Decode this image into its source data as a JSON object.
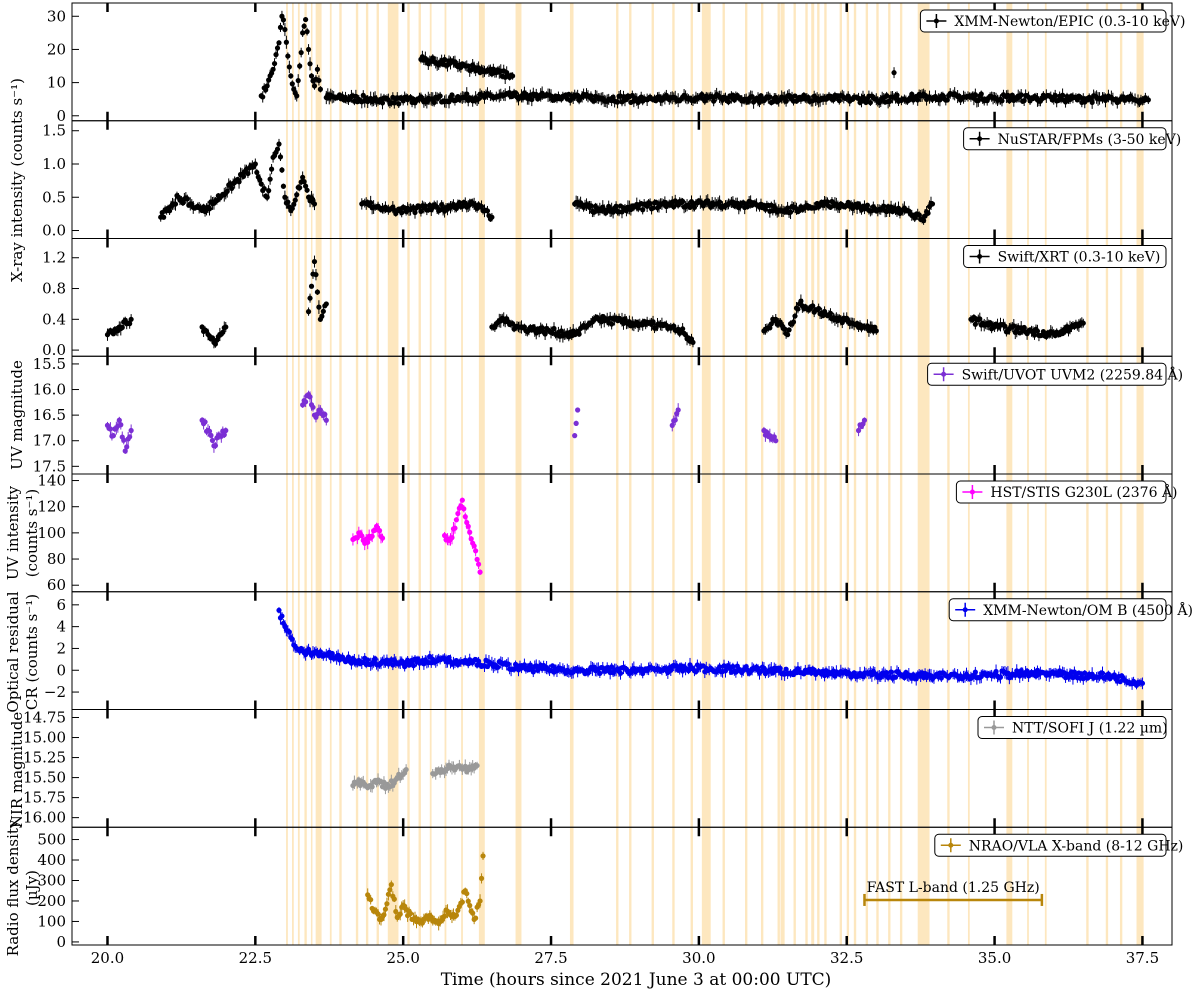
{
  "chart_data": {
    "type": "scatter",
    "xlabel": "Time (hours since 2021 June 3 at 00:00 UTC)",
    "xlim": [
      19.4,
      38.0
    ],
    "xticks": [
      "20.0",
      "22.5",
      "25.0",
      "27.5",
      "30.0",
      "32.5",
      "35.0",
      "37.5"
    ],
    "xtick_values": [
      20.0,
      22.5,
      25.0,
      27.5,
      30.0,
      32.5,
      35.0,
      37.5
    ],
    "shaded_intervals": [
      [
        23.02,
        23.05
      ],
      [
        23.12,
        23.15
      ],
      [
        23.22,
        23.25
      ],
      [
        23.33,
        23.37
      ],
      [
        23.44,
        23.46
      ],
      [
        23.52,
        23.62
      ],
      [
        23.76,
        23.79
      ],
      [
        23.92,
        23.96
      ],
      [
        24.2,
        24.24
      ],
      [
        24.37,
        24.41
      ],
      [
        24.55,
        24.59
      ],
      [
        24.74,
        24.92
      ],
      [
        25.07,
        25.11
      ],
      [
        25.26,
        25.3
      ],
      [
        25.45,
        25.48
      ],
      [
        25.7,
        25.73
      ],
      [
        25.98,
        26.01
      ],
      [
        26.28,
        26.38
      ],
      [
        26.9,
        27.0
      ],
      [
        27.82,
        27.88
      ],
      [
        28.6,
        28.64
      ],
      [
        28.82,
        28.86
      ],
      [
        29.2,
        29.24
      ],
      [
        29.55,
        29.59
      ],
      [
        29.86,
        29.9
      ],
      [
        30.05,
        30.2
      ],
      [
        30.4,
        30.44
      ],
      [
        30.78,
        30.82
      ],
      [
        31.05,
        31.09
      ],
      [
        31.33,
        31.37
      ],
      [
        31.38,
        31.45
      ],
      [
        31.6,
        31.64
      ],
      [
        31.8,
        31.84
      ],
      [
        31.9,
        31.95
      ],
      [
        32.0,
        32.04
      ],
      [
        32.12,
        32.16
      ],
      [
        32.38,
        32.42
      ],
      [
        32.5,
        32.54
      ],
      [
        32.62,
        32.66
      ],
      [
        32.82,
        32.86
      ],
      [
        33.0,
        33.04
      ],
      [
        33.2,
        33.24
      ],
      [
        33.4,
        33.44
      ],
      [
        33.7,
        33.9
      ],
      [
        34.2,
        34.24
      ],
      [
        34.55,
        34.58
      ],
      [
        35.2,
        35.3
      ],
      [
        35.55,
        35.58
      ],
      [
        35.85,
        35.88
      ],
      [
        36.55,
        36.59
      ],
      [
        36.88,
        36.92
      ],
      [
        37.12,
        37.16
      ],
      [
        37.4,
        37.52
      ]
    ],
    "panels": [
      {
        "id": "xmm-epic",
        "legend": "XMM-Newton/EPIC (0.3-10 keV)",
        "color": "#000000",
        "ylim": [
          -1.5,
          34
        ],
        "yticks": [
          "0",
          "10",
          "20",
          "30"
        ],
        "ytick_values": [
          0,
          10,
          20,
          30
        ],
        "series": [
          {
            "segment": "flare",
            "x": [
              22.6,
              22.7,
              22.8,
              22.9,
              22.95,
              23.0,
              23.05,
              23.1,
              23.15,
              23.2,
              23.25,
              23.3,
              23.35,
              23.4,
              23.45,
              23.5,
              23.55,
              23.6
            ],
            "y": [
              6,
              9,
              14,
              22,
              30,
              26,
              18,
              12,
              8,
              6,
              15,
              25,
              29,
              20,
              12,
              9,
              14,
              8
            ]
          },
          {
            "segment": "quiescent",
            "x": [
              23.7,
              24.5,
              25.0,
              25.5,
              26.0,
              27.0,
              28.0,
              29.0,
              30.0,
              31.0,
              32.0,
              33.0,
              34.0,
              35.0,
              36.0,
              37.0,
              37.6
            ],
            "y": [
              5.5,
              5.0,
              4.5,
              5.0,
              5.5,
              6.0,
              5.5,
              5.0,
              5.5,
              5.0,
              5.2,
              5.0,
              5.8,
              5.5,
              5.2,
              5.0,
              4.8
            ]
          },
          {
            "segment": "outliers",
            "x": [
              25.3,
              26.05,
              26.85,
              33.3
            ],
            "y": [
              17,
              15,
              12,
              13
            ]
          }
        ]
      },
      {
        "id": "nustar",
        "legend": "NuSTAR/FPMs (3-50 keV)",
        "color": "#000000",
        "ylim": [
          -0.12,
          1.65
        ],
        "yticks": [
          "0.0",
          "0.5",
          "1.0",
          "1.5"
        ],
        "ytick_values": [
          0.0,
          0.5,
          1.0,
          1.5
        ],
        "series": [
          {
            "segment": "orbits",
            "x": [
              20.9,
              21.0,
              21.1,
              21.2,
              21.4,
              21.5,
              21.6,
              21.7,
              22.5,
              22.6,
              22.7,
              22.8,
              22.9,
              23.0,
              23.1,
              23.3,
              23.4,
              23.5
            ],
            "y": [
              0.2,
              0.3,
              0.4,
              0.5,
              0.4,
              0.35,
              0.3,
              0.35,
              1.0,
              0.7,
              0.5,
              1.1,
              1.3,
              0.5,
              0.3,
              0.8,
              0.5,
              0.4
            ]
          },
          {
            "segment": "orbits-later",
            "x": [
              24.3,
              24.7,
              24.9,
              25.8,
              26.2,
              26.5,
              27.9,
              28.3,
              28.9,
              29.5,
              30.5,
              31.0,
              31.4,
              32.3,
              32.8,
              33.5,
              33.8,
              33.95
            ],
            "y": [
              0.4,
              0.35,
              0.3,
              0.35,
              0.4,
              0.2,
              0.4,
              0.3,
              0.35,
              0.4,
              0.4,
              0.38,
              0.3,
              0.4,
              0.35,
              0.3,
              0.15,
              0.4
            ]
          }
        ]
      },
      {
        "id": "swift-xrt",
        "legend": "Swift/XRT (0.3-10 keV)",
        "color": "#000000",
        "ylim": [
          -0.08,
          1.45
        ],
        "yticks": [
          "0.0",
          "0.4",
          "0.8",
          "1.2"
        ],
        "ytick_values": [
          0.0,
          0.4,
          0.8,
          1.2
        ],
        "series": [
          {
            "segment": "snapshots",
            "x": [
              20.0,
              20.2,
              20.4,
              21.6,
              21.8,
              22.0,
              23.4,
              23.5,
              23.6,
              23.7,
              26.5,
              26.7,
              26.9,
              27.9,
              28.1,
              28.3,
              29.5,
              29.7,
              29.9
            ],
            "y": [
              0.2,
              0.3,
              0.4,
              0.3,
              0.1,
              0.3,
              0.5,
              1.15,
              0.4,
              0.6,
              0.3,
              0.4,
              0.3,
              0.2,
              0.3,
              0.4,
              0.3,
              0.25,
              0.1
            ]
          },
          {
            "segment": "snapshots-later",
            "x": [
              31.1,
              31.3,
              31.5,
              31.7,
              32.6,
              32.8,
              33.0,
              34.6,
              34.8,
              35.0,
              36.1,
              36.3,
              36.5
            ],
            "y": [
              0.25,
              0.4,
              0.2,
              0.6,
              0.35,
              0.3,
              0.25,
              0.4,
              0.35,
              0.3,
              0.2,
              0.3,
              0.35
            ]
          }
        ]
      },
      {
        "id": "uvot",
        "legend": "Swift/UVOT UVM2 (2259.84 Å)",
        "color": "#7b2fd4",
        "ylim": [
          17.65,
          15.35
        ],
        "yticks": [
          "15.5",
          "16.0",
          "16.5",
          "17.0",
          "17.5"
        ],
        "ytick_values": [
          15.5,
          16.0,
          16.5,
          17.0,
          17.5
        ],
        "inverted": true,
        "series": [
          {
            "segment": "snapshots",
            "x": [
              20.0,
              20.1,
              20.2,
              20.3,
              20.4,
              21.6,
              21.7,
              21.8,
              21.9,
              22.0,
              23.3,
              23.4,
              23.5,
              23.6,
              23.7,
              27.9,
              27.95,
              29.55,
              29.65,
              31.1,
              31.2,
              31.3,
              32.7,
              32.8
            ],
            "y": [
              16.7,
              16.9,
              16.6,
              17.2,
              16.8,
              16.6,
              16.8,
              17.1,
              16.9,
              16.8,
              16.3,
              16.1,
              16.5,
              16.4,
              16.6,
              16.9,
              16.4,
              16.7,
              16.4,
              16.8,
              16.9,
              17.0,
              16.8,
              16.6
            ]
          }
        ]
      },
      {
        "id": "hst",
        "legend": "HST/STIS G230L (2376 Å)",
        "color": "#ff00ff",
        "ylim": [
          55,
          145
        ],
        "yticks": [
          "60",
          "80",
          "100",
          "120",
          "140"
        ],
        "ytick_values": [
          60,
          80,
          100,
          120,
          140
        ],
        "series": [
          {
            "segment": "orbit-1",
            "x": [
              24.15,
              24.25,
              24.35,
              24.45,
              24.55,
              24.65
            ],
            "y": [
              95,
              100,
              92,
              96,
              105,
              96
            ]
          },
          {
            "segment": "orbit-2",
            "x": [
              25.7,
              25.8,
              25.9,
              26.0,
              26.1,
              26.2,
              26.3
            ],
            "y": [
              98,
              95,
              110,
              125,
              105,
              90,
              70
            ]
          }
        ]
      },
      {
        "id": "om",
        "legend": "XMM-Newton/OM B (4500 Å)",
        "color": "#0000ee",
        "ylim": [
          -3.6,
          7.2
        ],
        "yticks": [
          "−2",
          "0",
          "2",
          "4",
          "6"
        ],
        "ytick_values": [
          -2,
          0,
          2,
          4,
          6
        ],
        "series": [
          {
            "segment": "exposures",
            "x": [
              22.9,
              23.0,
              23.1,
              23.2,
              23.3,
              23.5,
              23.7,
              24.0,
              24.5,
              25.0,
              25.5,
              26.0,
              26.5,
              27.0,
              28.0,
              29.0,
              30.0,
              31.0,
              32.0,
              33.0,
              34.0,
              35.0,
              36.0,
              37.0,
              37.5
            ],
            "y": [
              5.5,
              4.0,
              3.0,
              2.0,
              1.8,
              1.6,
              1.4,
              1.0,
              0.8,
              0.6,
              1.0,
              0.8,
              0.6,
              0.2,
              0.0,
              0.0,
              0.2,
              0.0,
              -0.2,
              -0.4,
              -0.5,
              -0.4,
              -0.3,
              -0.6,
              -1.2
            ]
          }
        ]
      },
      {
        "id": "sofi",
        "legend": "NTT/SOFI J (1.22 µm)",
        "color": "#999999",
        "ylim": [
          16.12,
          14.65
        ],
        "yticks": [
          "14.75",
          "15.00",
          "15.25",
          "15.50",
          "15.75",
          "16.00"
        ],
        "ytick_values": [
          14.75,
          15.0,
          15.25,
          15.5,
          15.75,
          16.0
        ],
        "inverted": true,
        "series": [
          {
            "segment": "block-1",
            "x": [
              24.15,
              24.3,
              24.45,
              24.6,
              24.75,
              24.9,
              25.05
            ],
            "y": [
              15.6,
              15.55,
              15.6,
              15.55,
              15.62,
              15.5,
              15.4
            ]
          },
          {
            "segment": "block-2",
            "x": [
              25.5,
              25.65,
              25.8,
              25.95,
              26.1,
              26.25
            ],
            "y": [
              15.45,
              15.4,
              15.38,
              15.35,
              15.4,
              15.35
            ]
          }
        ]
      },
      {
        "id": "vla",
        "legend": "NRAO/VLA X-band (8-12 GHz)",
        "color": "#b8860b",
        "ylim": [
          -15,
          560
        ],
        "yticks": [
          "0",
          "100",
          "200",
          "300",
          "400",
          "500"
        ],
        "ytick_values": [
          0,
          100,
          200,
          300,
          400,
          500
        ],
        "series": [
          {
            "segment": "scans",
            "x": [
              24.4,
              24.5,
              24.6,
              24.7,
              24.8,
              24.9,
              25.0,
              25.15,
              25.3,
              25.45,
              25.6,
              25.75,
              25.9,
              26.05,
              26.2,
              26.3,
              26.35
            ],
            "y": [
              230,
              150,
              110,
              160,
              280,
              120,
              180,
              110,
              100,
              130,
              90,
              150,
              130,
              250,
              110,
              200,
              420
            ]
          }
        ],
        "annotation": {
          "label": "FAST L-band (1.25 GHz)",
          "x_start": 32.8,
          "x_end": 35.8,
          "y": 205
        }
      }
    ],
    "ylabels": {
      "xray": "X-ray intensity (counts s⁻¹)",
      "uv_mag": "UV magnitude",
      "uv_int_1": "UV intensity",
      "uv_int_2": "(counts s⁻¹)",
      "opt_1": "Optical residual",
      "opt_2": "CR (counts s⁻¹)",
      "nir": "NIR magnitude",
      "radio_1": "Radio flux density",
      "radio_2": "(µJy)"
    }
  }
}
